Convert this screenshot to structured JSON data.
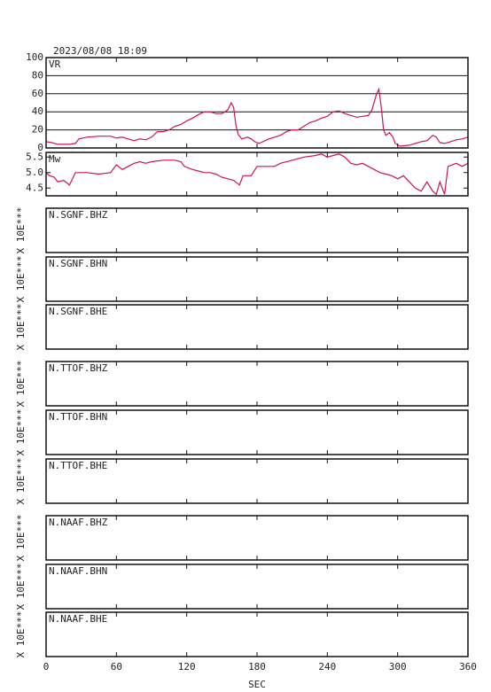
{
  "title": "2023/08/08 18:09",
  "x_axis": {
    "label": "SEC",
    "xlim": [
      0,
      360
    ],
    "xticks": [
      0,
      60,
      120,
      180,
      240,
      300,
      360
    ]
  },
  "chart_data": [
    {
      "type": "line",
      "label": "VR",
      "color": "#d0105a",
      "ylim": [
        0,
        100
      ],
      "yticks": [
        0,
        20,
        40,
        60,
        80,
        100
      ],
      "grid": true,
      "x": [
        0,
        5,
        10,
        20,
        25,
        28,
        35,
        45,
        55,
        60,
        65,
        70,
        75,
        80,
        85,
        90,
        95,
        100,
        105,
        110,
        115,
        120,
        125,
        130,
        135,
        140,
        145,
        150,
        155,
        158,
        160,
        162,
        164,
        167,
        172,
        175,
        178,
        182,
        185,
        190,
        195,
        200,
        205,
        210,
        215,
        220,
        225,
        230,
        235,
        240,
        245,
        250,
        255,
        260,
        265,
        270,
        275,
        278,
        282,
        284,
        286,
        288,
        290,
        293,
        296,
        298,
        302,
        310,
        315,
        320,
        325,
        330,
        333,
        336,
        340,
        345,
        350,
        355,
        360
      ],
      "values": [
        7,
        6,
        4,
        4,
        5,
        10,
        12,
        13,
        13,
        11,
        12,
        10,
        8,
        10,
        9,
        12,
        18,
        18,
        20,
        24,
        26,
        30,
        33,
        37,
        40,
        40,
        38,
        38,
        42,
        50,
        45,
        25,
        15,
        10,
        12,
        10,
        7,
        5,
        7,
        10,
        12,
        14,
        18,
        20,
        20,
        24,
        28,
        30,
        33,
        35,
        40,
        41,
        38,
        36,
        34,
        35,
        36,
        42,
        60,
        65,
        45,
        20,
        14,
        17,
        12,
        5,
        2,
        3,
        5,
        7,
        8,
        14,
        12,
        6,
        5,
        7,
        9,
        10,
        12
      ]
    },
    {
      "type": "line",
      "label": "Mw",
      "color": "#d0105a",
      "ylim": [
        4.25,
        5.65
      ],
      "yticks": [
        4.5,
        {
          "value": 5,
          "label": "5.0"
        },
        5.5
      ],
      "grid": false,
      "x": [
        0,
        3,
        7,
        10,
        15,
        20,
        25,
        35,
        45,
        55,
        60,
        65,
        70,
        75,
        80,
        85,
        90,
        100,
        110,
        115,
        118,
        125,
        130,
        135,
        140,
        145,
        150,
        155,
        160,
        165,
        168,
        175,
        180,
        185,
        195,
        200,
        210,
        220,
        230,
        235,
        240,
        245,
        250,
        255,
        260,
        265,
        270,
        275,
        280,
        285,
        290,
        295,
        300,
        305,
        310,
        315,
        320,
        325,
        330,
        333,
        336,
        340,
        343,
        350,
        355,
        360
      ],
      "values": [
        5.0,
        4.9,
        4.85,
        4.7,
        4.75,
        4.6,
        5.0,
        5.0,
        4.95,
        5.0,
        5.25,
        5.1,
        5.2,
        5.3,
        5.35,
        5.3,
        5.35,
        5.4,
        5.4,
        5.35,
        5.2,
        5.1,
        5.05,
        5.0,
        5.0,
        4.95,
        4.85,
        4.8,
        4.75,
        4.6,
        4.9,
        4.9,
        5.2,
        5.2,
        5.2,
        5.3,
        5.4,
        5.5,
        5.55,
        5.6,
        5.5,
        5.55,
        5.6,
        5.5,
        5.3,
        5.25,
        5.3,
        5.2,
        5.1,
        5.0,
        4.95,
        4.9,
        4.8,
        4.9,
        4.7,
        4.5,
        4.4,
        4.7,
        4.4,
        4.3,
        4.7,
        4.3,
        5.2,
        5.3,
        5.2,
        5.3
      ]
    }
  ],
  "station_y_label": "X 10E***",
  "stations": [
    "N.SGNF.BHZ",
    "N.SGNF.BHN",
    "N.SGNF.BHE",
    "N.TTOF.BHZ",
    "N.TTOF.BHN",
    "N.TTOF.BHE",
    "N.NAAF.BHZ",
    "N.NAAF.BHN",
    "N.NAAF.BHE"
  ]
}
